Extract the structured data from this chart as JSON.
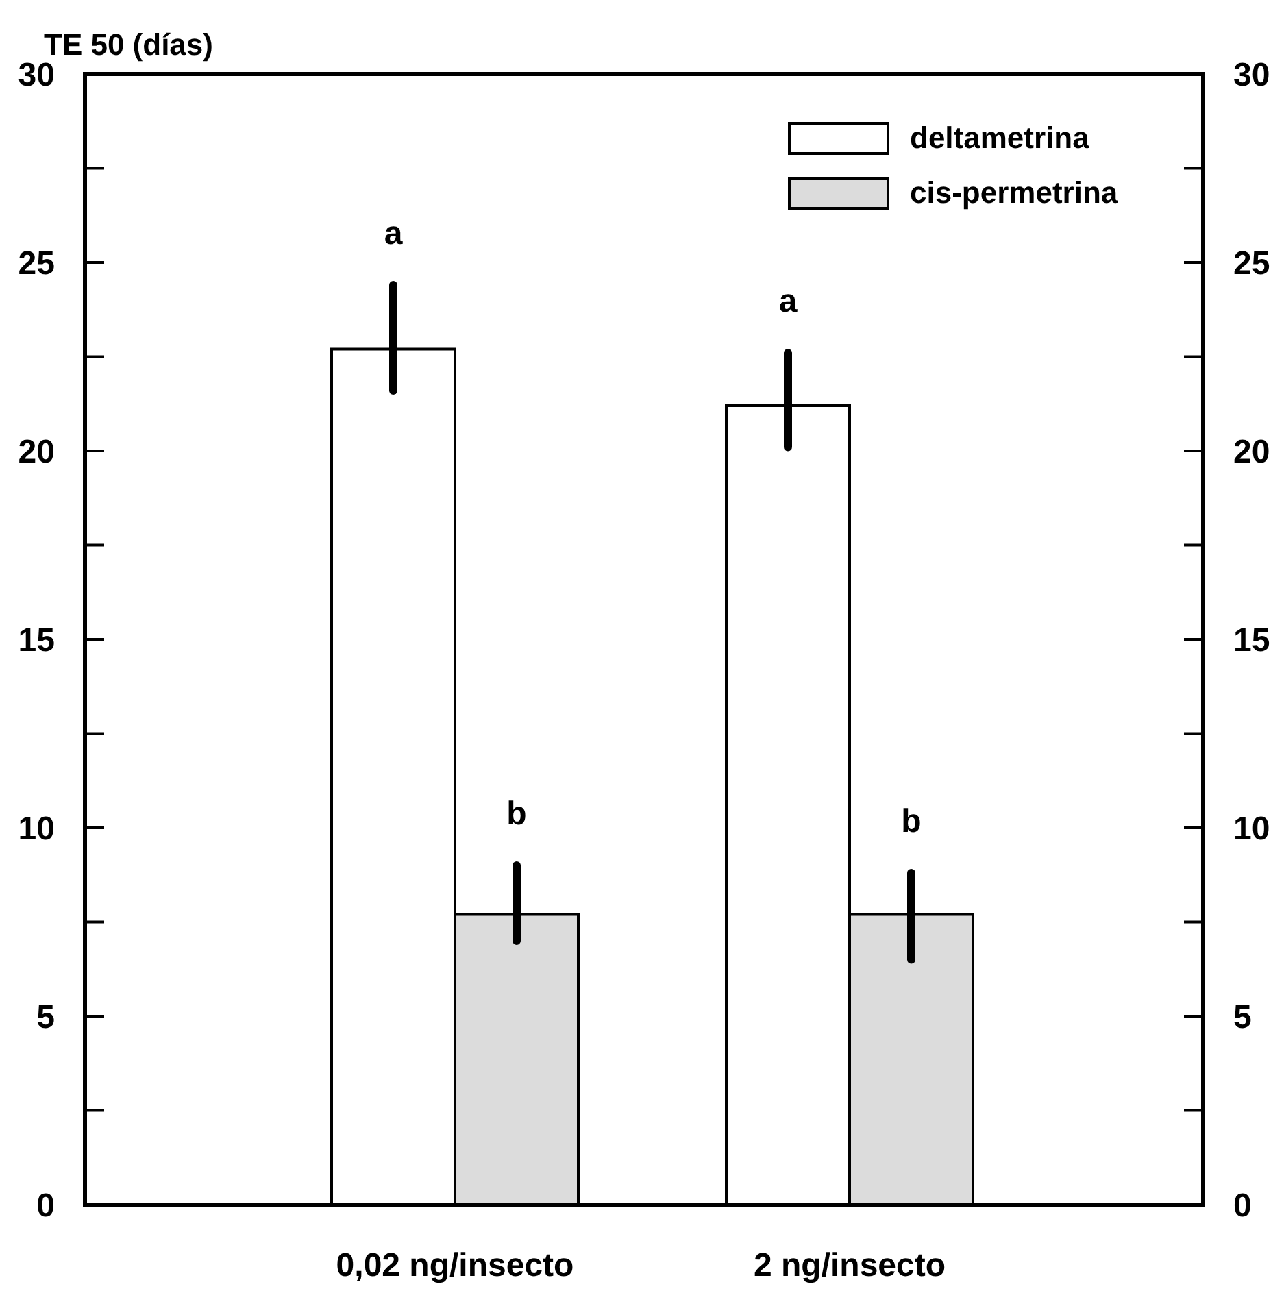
{
  "chart_data": {
    "type": "bar",
    "ylabel": "TE 50 (días)",
    "categories": [
      "0,02 ng/insecto",
      "2 ng/insecto"
    ],
    "series": [
      {
        "name": "deltametrina",
        "color": "#ffffff",
        "values": [
          22.7,
          21.2
        ],
        "errors": [
          [
            21.6,
            24.4
          ],
          [
            20.1,
            22.6
          ]
        ]
      },
      {
        "name": "cis-permetrina",
        "color": "#dcdcdc",
        "values": [
          7.7,
          7.7
        ],
        "errors": [
          [
            7.0,
            9.0
          ],
          [
            6.5,
            8.8
          ]
        ]
      }
    ],
    "ylim": [
      0,
      30
    ],
    "yticks": [
      0,
      {
        "value": 2.5,
        "label": null
      },
      5,
      {
        "value": 7.5,
        "label": null
      },
      10,
      {
        "value": 12.5,
        "label": null
      },
      15,
      {
        "value": 17.5,
        "label": null
      },
      20,
      {
        "value": 22.5,
        "label": null
      },
      25,
      {
        "value": 27.5,
        "label": null
      },
      30
    ],
    "y2lim": [
      0,
      30
    ],
    "y2ticks": [
      0,
      {
        "value": 2.5,
        "label": null
      },
      5,
      {
        "value": 7.5,
        "label": null
      },
      10,
      {
        "value": 12.5,
        "label": null
      },
      15,
      {
        "value": 17.5,
        "label": null
      },
      20,
      {
        "value": 22.5,
        "label": null
      },
      25,
      {
        "value": 27.5,
        "label": null
      },
      30
    ],
    "annotations": [
      "a",
      "b",
      "a",
      "b"
    ],
    "legend": "top right",
    "grid": false
  }
}
